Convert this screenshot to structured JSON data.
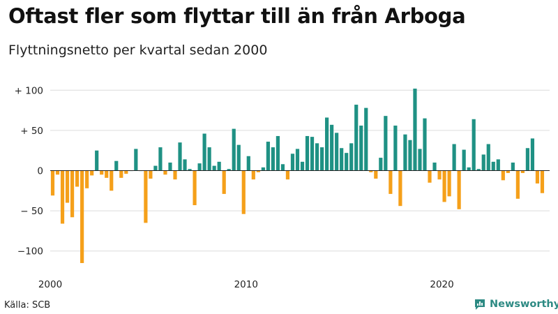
{
  "chart_data": {
    "type": "bar",
    "title": "Oftast fler som flyttar till än från Arboga",
    "subtitle": "Flyttningsnetto per kvartal sedan 2000",
    "ylim": [
      -118,
      108
    ],
    "xlim": [
      2000,
      2025.5
    ],
    "y_ticks": [
      {
        "value": 100,
        "label": "+ 100"
      },
      {
        "value": 50,
        "label": "+  50"
      },
      {
        "value": 0,
        "label": "0"
      },
      {
        "value": -50,
        "label": "− 50"
      },
      {
        "value": -100,
        "label": "−100"
      }
    ],
    "x_ticks": [
      {
        "value": 2000,
        "label": "2000"
      },
      {
        "value": 2010,
        "label": "2010"
      },
      {
        "value": 2020,
        "label": "2020"
      }
    ],
    "start_year": 2000,
    "periods_per_year": 4,
    "values": [
      -31,
      -5,
      -66,
      -40,
      -58,
      -20,
      -115,
      -22,
      -6,
      25,
      -5,
      -9,
      -25,
      12,
      -9,
      -4,
      0,
      27,
      0,
      -65,
      -10,
      6,
      29,
      -5,
      10,
      -11,
      35,
      14,
      2,
      -43,
      9,
      46,
      29,
      6,
      11,
      -29,
      2,
      52,
      32,
      -54,
      18,
      -11,
      -2,
      4,
      36,
      29,
      43,
      8,
      -11,
      21,
      27,
      11,
      43,
      42,
      34,
      29,
      66,
      57,
      47,
      28,
      22,
      34,
      82,
      56,
      78,
      -2,
      -10,
      16,
      68,
      -29,
      56,
      -44,
      45,
      38,
      102,
      27,
      65,
      -15,
      10,
      -11,
      -39,
      -32,
      33,
      -48,
      26,
      4,
      64,
      2,
      20,
      33,
      11,
      14,
      -12,
      -3,
      10,
      -35,
      -3,
      28,
      40,
      -16,
      -28
    ],
    "colors": {
      "positive": "#1f9184",
      "negative": "#f5a01a"
    }
  },
  "source": "Källa: SCB",
  "brand": "Newsworthy"
}
